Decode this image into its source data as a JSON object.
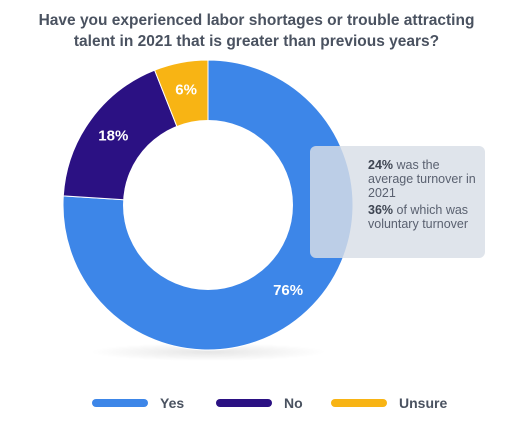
{
  "title_lines": [
    "Have you experienced labor shortages or trouble attracting",
    "talent in 2021 that is greater than previous years?"
  ],
  "chart_data": {
    "type": "pie",
    "donut": true,
    "title": "Have you experienced labor shortages or trouble attracting talent in 2021 that is greater than previous years?",
    "categories": [
      "Yes",
      "No",
      "Unsure"
    ],
    "values": [
      76,
      18,
      6
    ],
    "value_labels": [
      "76%",
      "18%",
      "6%"
    ],
    "colors": [
      "#3d86e8",
      "#2b1183",
      "#f8b414"
    ],
    "legend_position": "bottom"
  },
  "callout": {
    "line1_bold": "24%",
    "line1_text": " was the average turnover in 2021",
    "line2_bold": "36%",
    "line2_text": " of which was voluntary turnover"
  },
  "legend": [
    {
      "label": "Yes",
      "color": "#3d86e8"
    },
    {
      "label": "No",
      "color": "#2b1183"
    },
    {
      "label": "Unsure",
      "color": "#f8b414"
    }
  ]
}
